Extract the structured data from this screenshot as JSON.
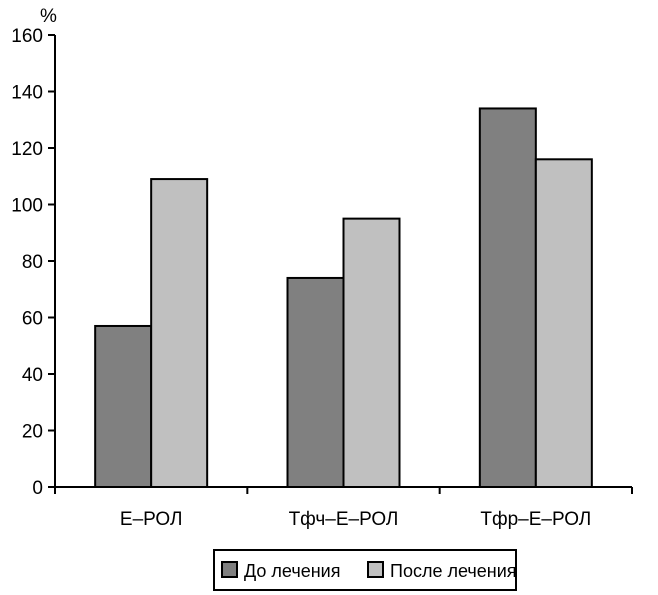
{
  "chart_data": {
    "type": "bar",
    "ylabel": "%",
    "ylim": [
      0,
      160
    ],
    "yticks": [
      0,
      20,
      40,
      60,
      80,
      100,
      120,
      140,
      160
    ],
    "categories": [
      "Е–РОЛ",
      "Тфч–Е–РОЛ",
      "Тфр–Е–РОЛ"
    ],
    "series": [
      {
        "name": "До лечения",
        "values": [
          57,
          74,
          134
        ],
        "color": "#808080"
      },
      {
        "name": "После лечения",
        "values": [
          109,
          95,
          116
        ],
        "color": "#c0c0c0"
      }
    ],
    "grid": false,
    "legend": "bottom-center"
  }
}
